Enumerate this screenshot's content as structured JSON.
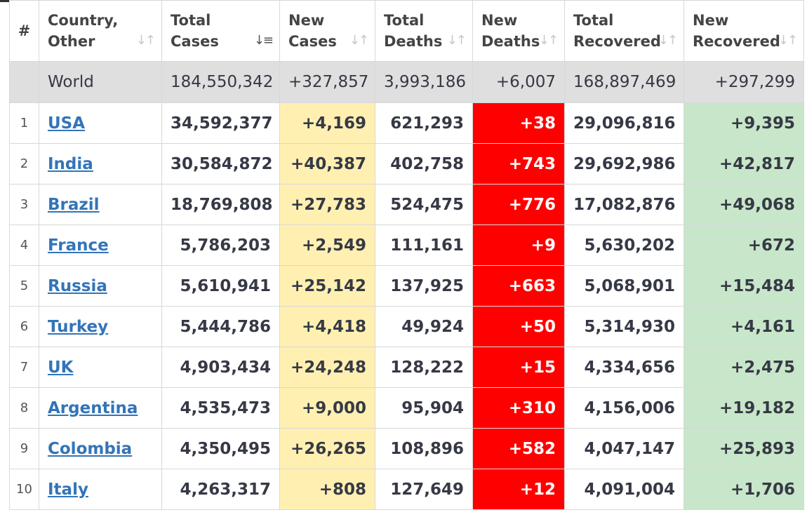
{
  "headers": {
    "index": "#",
    "country": [
      "Country,",
      "Other"
    ],
    "total_cases": [
      "Total",
      "Cases"
    ],
    "new_cases": [
      "New",
      "Cases"
    ],
    "total_deaths": [
      "Total",
      "Deaths"
    ],
    "new_deaths": [
      "New",
      "Deaths"
    ],
    "total_recovered": [
      "Total",
      "Recovered"
    ],
    "new_recovered": [
      "New",
      "Recovered"
    ]
  },
  "world": {
    "name": "World",
    "total_cases": "184,550,342",
    "new_cases": "+327,857",
    "total_deaths": "3,993,186",
    "new_deaths": "+6,007",
    "total_recovered": "168,897,469",
    "new_recovered": "+297,299"
  },
  "rows": [
    {
      "rank": "1",
      "country": "USA",
      "total_cases": "34,592,377",
      "new_cases": "+4,169",
      "total_deaths": "621,293",
      "new_deaths": "+38",
      "total_recovered": "29,096,816",
      "new_recovered": "+9,395"
    },
    {
      "rank": "2",
      "country": "India",
      "total_cases": "30,584,872",
      "new_cases": "+40,387",
      "total_deaths": "402,758",
      "new_deaths": "+743",
      "total_recovered": "29,692,986",
      "new_recovered": "+42,817"
    },
    {
      "rank": "3",
      "country": "Brazil",
      "total_cases": "18,769,808",
      "new_cases": "+27,783",
      "total_deaths": "524,475",
      "new_deaths": "+776",
      "total_recovered": "17,082,876",
      "new_recovered": "+49,068"
    },
    {
      "rank": "4",
      "country": "France",
      "total_cases": "5,786,203",
      "new_cases": "+2,549",
      "total_deaths": "111,161",
      "new_deaths": "+9",
      "total_recovered": "5,630,202",
      "new_recovered": "+672"
    },
    {
      "rank": "5",
      "country": "Russia",
      "total_cases": "5,610,941",
      "new_cases": "+25,142",
      "total_deaths": "137,925",
      "new_deaths": "+663",
      "total_recovered": "5,068,901",
      "new_recovered": "+15,484"
    },
    {
      "rank": "6",
      "country": "Turkey",
      "total_cases": "5,444,786",
      "new_cases": "+4,418",
      "total_deaths": "49,924",
      "new_deaths": "+50",
      "total_recovered": "5,314,930",
      "new_recovered": "+4,161"
    },
    {
      "rank": "7",
      "country": "UK",
      "total_cases": "4,903,434",
      "new_cases": "+24,248",
      "total_deaths": "128,222",
      "new_deaths": "+15",
      "total_recovered": "4,334,656",
      "new_recovered": "+2,475"
    },
    {
      "rank": "8",
      "country": "Argentina",
      "total_cases": "4,535,473",
      "new_cases": "+9,000",
      "total_deaths": "95,904",
      "new_deaths": "+310",
      "total_recovered": "4,156,006",
      "new_recovered": "+19,182"
    },
    {
      "rank": "9",
      "country": "Colombia",
      "total_cases": "4,350,495",
      "new_cases": "+26,265",
      "total_deaths": "108,896",
      "new_deaths": "+582",
      "total_recovered": "4,047,147",
      "new_recovered": "+25,893"
    },
    {
      "rank": "10",
      "country": "Italy",
      "total_cases": "4,263,317",
      "new_cases": "+808",
      "total_deaths": "127,649",
      "new_deaths": "+12",
      "total_recovered": "4,091,004",
      "new_recovered": "+1,706"
    }
  ],
  "colors": {
    "new_cases_bg": "#fff0b2",
    "new_deaths_bg": "#ff0000",
    "new_recovered_bg": "#c8e6c9",
    "world_row_bg": "#dfdfdf",
    "link": "#3374b8"
  },
  "icons": {
    "sort_default": "sort-arrows-icon",
    "sort_active": "sort-desc-icon"
  }
}
